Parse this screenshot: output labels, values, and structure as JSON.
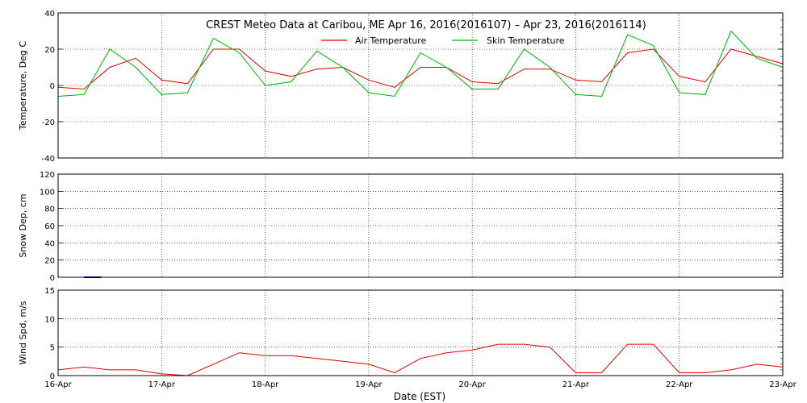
{
  "figure": {
    "title": "CREST Meteo Data at Caribou, ME   Apr 16, 2016(2016107) – Apr 23, 2016(2016114)",
    "xlabel": "Date (EST)"
  },
  "x_axis": {
    "ticks": [
      "16-Apr",
      "17-Apr",
      "18-Apr",
      "19-Apr",
      "20-Apr",
      "21-Apr",
      "22-Apr",
      "23-Apr"
    ],
    "range_days": [
      0,
      7
    ]
  },
  "chart_data": [
    {
      "type": "line",
      "ylabel": "Temperature, Deg C",
      "ylim": [
        -40,
        40
      ],
      "yticks": [
        -40,
        -20,
        0,
        20,
        40
      ],
      "grid": true,
      "legend_placement": "top-center",
      "series": [
        {
          "name": "Air Temperature",
          "color": "#e00000",
          "x": [
            "2016-04-16 00:00",
            "2016-04-16 06:00",
            "2016-04-16 12:00",
            "2016-04-16 18:00",
            "2016-04-17 00:00",
            "2016-04-17 06:00",
            "2016-04-17 12:00",
            "2016-04-17 18:00",
            "2016-04-18 00:00",
            "2016-04-18 06:00",
            "2016-04-18 12:00",
            "2016-04-18 18:00",
            "2016-04-19 00:00",
            "2016-04-19 06:00",
            "2016-04-19 12:00",
            "2016-04-19 18:00",
            "2016-04-20 00:00",
            "2016-04-20 06:00",
            "2016-04-20 12:00",
            "2016-04-20 18:00",
            "2016-04-21 00:00",
            "2016-04-21 06:00",
            "2016-04-21 12:00",
            "2016-04-21 18:00",
            "2016-04-22 00:00",
            "2016-04-22 06:00",
            "2016-04-22 12:00",
            "2016-04-22 18:00",
            "2016-04-23 00:00"
          ],
          "values": [
            -1,
            -2,
            10,
            15,
            3,
            1,
            20,
            20,
            8,
            5,
            9,
            10,
            3,
            -1,
            10,
            10,
            2,
            1,
            9,
            9,
            3,
            2,
            18,
            20,
            5,
            2,
            20,
            16,
            12
          ]
        },
        {
          "name": "Skin Temperature",
          "color": "#00b000",
          "x": [
            "2016-04-16 00:00",
            "2016-04-16 06:00",
            "2016-04-16 12:00",
            "2016-04-16 18:00",
            "2016-04-17 00:00",
            "2016-04-17 06:00",
            "2016-04-17 12:00",
            "2016-04-17 18:00",
            "2016-04-18 00:00",
            "2016-04-18 06:00",
            "2016-04-18 12:00",
            "2016-04-18 18:00",
            "2016-04-19 00:00",
            "2016-04-19 06:00",
            "2016-04-19 12:00",
            "2016-04-19 18:00",
            "2016-04-20 00:00",
            "2016-04-20 06:00",
            "2016-04-20 12:00",
            "2016-04-20 18:00",
            "2016-04-21 00:00",
            "2016-04-21 06:00",
            "2016-04-21 12:00",
            "2016-04-21 18:00",
            "2016-04-22 00:00",
            "2016-04-22 06:00",
            "2016-04-22 12:00",
            "2016-04-22 18:00",
            "2016-04-23 00:00"
          ],
          "values": [
            -6,
            -5,
            20,
            10,
            -5,
            -4,
            26,
            18,
            0,
            2,
            19,
            10,
            -4,
            -6,
            18,
            10,
            -2,
            -2,
            20,
            10,
            -5,
            -6,
            28,
            22,
            -4,
            -5,
            30,
            15,
            10
          ]
        }
      ]
    },
    {
      "type": "line",
      "ylabel": "Snow Dep, cm",
      "ylim": [
        0,
        120
      ],
      "yticks": [
        0,
        20,
        40,
        60,
        80,
        100,
        120
      ],
      "grid": true,
      "series": [
        {
          "color": "#0000c0",
          "x": [
            "2016-04-16 06:00",
            "2016-04-16 10:00"
          ],
          "values": [
            0,
            0
          ]
        }
      ]
    },
    {
      "type": "line",
      "ylabel": "Wind Spd, m/s",
      "ylim": [
        0,
        15
      ],
      "yticks": [
        0,
        5,
        10,
        15
      ],
      "grid": true,
      "series": [
        {
          "color": "#e00000",
          "x": [
            "2016-04-16 00:00",
            "2016-04-16 06:00",
            "2016-04-16 12:00",
            "2016-04-16 18:00",
            "2016-04-17 00:00",
            "2016-04-17 06:00",
            "2016-04-17 12:00",
            "2016-04-17 18:00",
            "2016-04-18 00:00",
            "2016-04-18 06:00",
            "2016-04-18 12:00",
            "2016-04-18 18:00",
            "2016-04-19 00:00",
            "2016-04-19 06:00",
            "2016-04-19 12:00",
            "2016-04-19 18:00",
            "2016-04-20 00:00",
            "2016-04-20 06:00",
            "2016-04-20 12:00",
            "2016-04-20 18:00",
            "2016-04-21 00:00",
            "2016-04-21 06:00",
            "2016-04-21 12:00",
            "2016-04-21 18:00",
            "2016-04-22 00:00",
            "2016-04-22 06:00",
            "2016-04-22 12:00",
            "2016-04-22 18:00",
            "2016-04-23 00:00"
          ],
          "values": [
            1,
            1.5,
            1,
            1,
            0.3,
            0,
            2,
            4,
            3.5,
            3.5,
            3,
            2.5,
            2,
            0.5,
            3,
            4,
            4.5,
            5.5,
            5.5,
            5,
            0.5,
            0.5,
            5.5,
            5.5,
            0.5,
            0.5,
            1,
            2,
            1.5
          ]
        }
      ]
    }
  ]
}
